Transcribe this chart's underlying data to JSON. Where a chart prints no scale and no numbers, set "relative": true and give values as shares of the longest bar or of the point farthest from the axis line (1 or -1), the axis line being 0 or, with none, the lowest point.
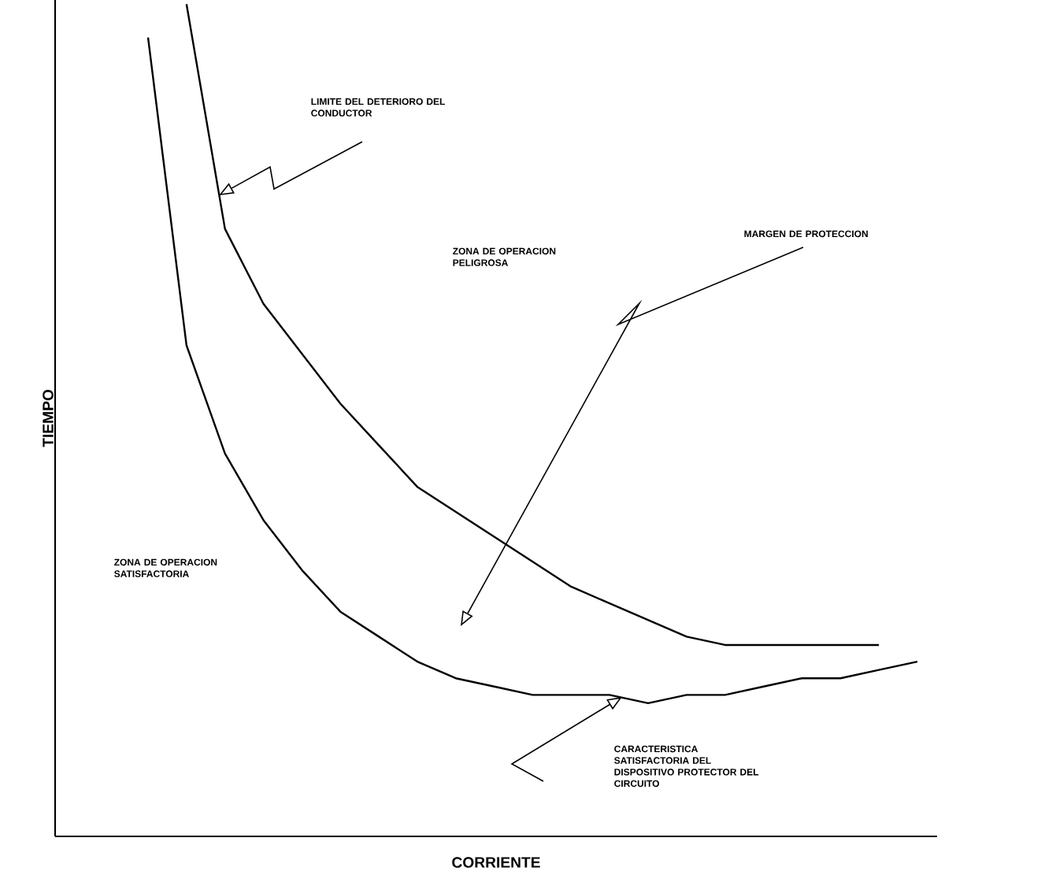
{
  "chart_data": {
    "type": "line",
    "relative": true,
    "xlabel": "CORRIENTE",
    "ylabel": "TIEMPO",
    "categories": [
      null,
      null,
      null,
      null,
      null,
      null,
      null,
      null,
      null,
      null,
      null,
      null,
      null,
      null,
      null,
      null,
      null,
      null,
      null,
      null,
      null
    ],
    "series": [
      {
        "color": "#000000",
        "values": [
          null,
          1.0,
          0.73,
          0.64,
          0.58,
          0.52,
          0.47,
          0.42,
          0.39,
          0.36,
          0.33,
          0.3,
          0.28,
          0.26,
          0.24,
          0.23,
          0.23,
          0.23,
          0.23,
          0.23,
          null
        ]
      },
      {
        "color": "#000000",
        "values": [
          0.96,
          0.59,
          0.46,
          0.38,
          0.32,
          0.27,
          0.24,
          0.21,
          0.19,
          0.18,
          0.17,
          0.17,
          0.17,
          0.16,
          0.17,
          0.17,
          0.18,
          0.19,
          0.19,
          0.2,
          0.21
        ]
      }
    ],
    "annotations": [
      "LIMITE DEL DETERIORO DEL CONDUCTOR",
      "ZONA DE OPERACION PELIGROSA",
      "MARGEN DE PROTECCION",
      "ZONA DE OPERACION SATISFACTORIA",
      "CARACTERISTICA SATISFACTORIA DEL DISPOSITIVO PROTECTOR DEL CIRCUITO"
    ]
  }
}
